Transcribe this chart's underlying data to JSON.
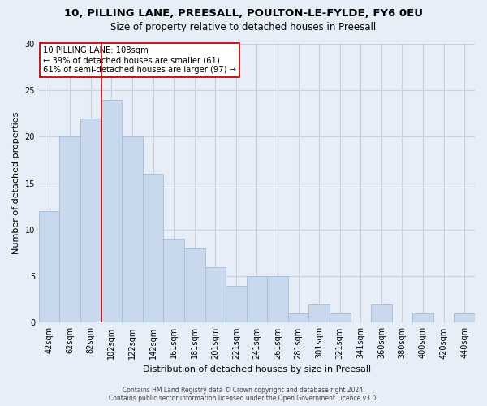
{
  "title": "10, PILLING LANE, PREESALL, POULTON-LE-FYLDE, FY6 0EU",
  "subtitle": "Size of property relative to detached houses in Preesall",
  "xlabel": "Distribution of detached houses by size in Preesall",
  "ylabel": "Number of detached properties",
  "bar_labels": [
    "42sqm",
    "62sqm",
    "82sqm",
    "102sqm",
    "122sqm",
    "142sqm",
    "161sqm",
    "181sqm",
    "201sqm",
    "221sqm",
    "241sqm",
    "261sqm",
    "281sqm",
    "301sqm",
    "321sqm",
    "341sqm",
    "360sqm",
    "380sqm",
    "400sqm",
    "420sqm",
    "440sqm"
  ],
  "bar_values": [
    12,
    20,
    22,
    24,
    20,
    16,
    9,
    8,
    6,
    4,
    5,
    5,
    1,
    2,
    1,
    0,
    2,
    0,
    1,
    0,
    1
  ],
  "bar_color": "#c8d9ed",
  "bar_edgecolor": "#aabfd8",
  "ylim": [
    0,
    30
  ],
  "yticks": [
    0,
    5,
    10,
    15,
    20,
    25,
    30
  ],
  "vline_x_index": 3,
  "vline_color": "#cc0000",
  "annotation_line1": "10 PILLING LANE: 108sqm",
  "annotation_line2": "← 39% of detached houses are smaller (61)",
  "annotation_line3": "61% of semi-detached houses are larger (97) →",
  "annotation_box_color": "#ffffff",
  "annotation_box_edgecolor": "#cc0000",
  "footer_line1": "Contains HM Land Registry data © Crown copyright and database right 2024.",
  "footer_line2": "Contains public sector information licensed under the Open Government Licence v3.0.",
  "background_color": "#e8eef8",
  "plot_bg_color": "#e8eef8",
  "grid_color": "#c8d0de",
  "title_fontsize": 9.5,
  "subtitle_fontsize": 8.5,
  "xlabel_fontsize": 8,
  "ylabel_fontsize": 8,
  "tick_fontsize": 7
}
